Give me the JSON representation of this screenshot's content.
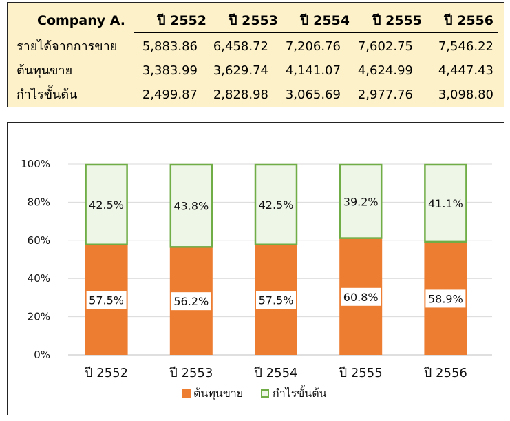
{
  "table": {
    "corner_label": "Company A.",
    "columns": [
      "ปี 2552",
      "ปี 2553",
      "ปี 2554",
      "ปี 2555",
      "ปี 2556"
    ],
    "rows": [
      {
        "label": "รายได้จากการขาย",
        "values": [
          "5,883.86",
          "6,458.72",
          "7,206.76",
          "7,602.75",
          "7,546.22"
        ]
      },
      {
        "label": "ต้นทุนขาย",
        "values": [
          "3,383.99",
          "3,629.74",
          "4,141.07",
          "4,624.99",
          "4,447.43"
        ]
      },
      {
        "label": "กำไรขั้นต้น",
        "values": [
          "2,499.87",
          "2,828.98",
          "3,065.69",
          "2,977.76",
          "3,098.80"
        ]
      }
    ]
  },
  "chart_data": {
    "type": "bar",
    "stacked": "percent",
    "categories": [
      "ปี 2552",
      "ปี 2553",
      "ปี 2554",
      "ปี 2555",
      "ปี 2556"
    ],
    "series": [
      {
        "name": "ต้นทุนขาย",
        "values": [
          57.5,
          56.2,
          57.5,
          60.8,
          58.9
        ],
        "labels": [
          "57.5%",
          "56.2%",
          "57.5%",
          "60.8%",
          "58.9%"
        ],
        "color": "#ed7d31"
      },
      {
        "name": "กำไรขั้นต้น",
        "values": [
          42.5,
          43.8,
          42.5,
          39.2,
          41.1
        ],
        "labels": [
          "42.5%",
          "43.8%",
          "42.5%",
          "39.2%",
          "41.1%"
        ],
        "color": "#eef6e8",
        "stroke": "#70ad47"
      }
    ],
    "yticks": [
      "0%",
      "20%",
      "40%",
      "60%",
      "80%",
      "100%"
    ],
    "ylim": [
      0,
      100
    ],
    "grid": true,
    "legend": "bottom"
  }
}
